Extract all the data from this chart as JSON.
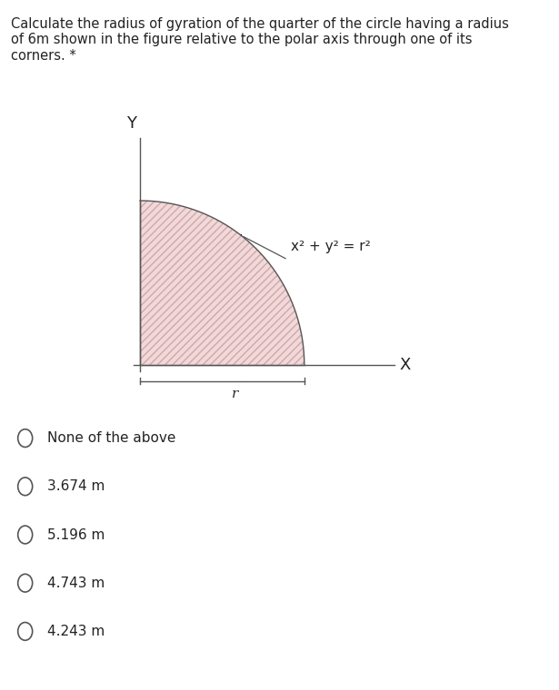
{
  "title_text": "Calculate the radius of gyration of the quarter of the circle having a radius\nof 6m shown in the figure relative to the polar axis through one of its\ncorners. *",
  "title_fontsize": 10.5,
  "title_color": "#222222",
  "bg_color": "#ffffff",
  "quarter_fill_color": "#f2d8d8",
  "quarter_hatch_color": "#ccaaaa",
  "quarter_edge_color": "#555555",
  "equation_text": "x² + y² = r²",
  "equation_fontsize": 11,
  "axis_label_fontsize": 13,
  "radius_label": "r",
  "options": [
    "None of the above",
    "3.674 m",
    "5.196 m",
    "4.743 m",
    "4.243 m"
  ],
  "options_fontsize": 11,
  "figure_width": 6.15,
  "figure_height": 7.6,
  "dpi": 100
}
